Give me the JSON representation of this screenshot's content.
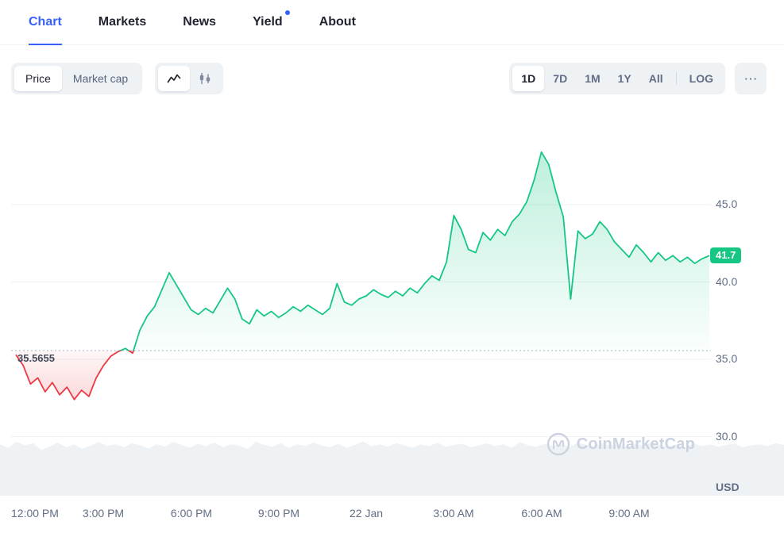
{
  "nav": {
    "tabs": [
      {
        "label": "Chart",
        "active": true,
        "dot": false
      },
      {
        "label": "Markets",
        "active": false,
        "dot": false
      },
      {
        "label": "News",
        "active": false,
        "dot": false
      },
      {
        "label": "Yield",
        "active": false,
        "dot": true
      },
      {
        "label": "About",
        "active": false,
        "dot": false
      }
    ]
  },
  "toolbar": {
    "metric_toggle": {
      "options": [
        "Price",
        "Market cap"
      ],
      "selected": "Price"
    },
    "chart_type_toggle": {
      "options": [
        "line",
        "candlestick"
      ],
      "selected": "line"
    },
    "ranges": {
      "options": [
        "1D",
        "7D",
        "1M",
        "1Y",
        "All",
        "LOG"
      ],
      "selected": "1D"
    }
  },
  "icons": {
    "more": "⋯"
  },
  "chart": {
    "current_price_label": "41.7",
    "baseline_label": "35.5655",
    "unit": "USD",
    "watermark": "CoinMarketCap"
  },
  "chart_data": {
    "type": "area",
    "title": "",
    "x_start_label": "12:00 PM",
    "interval_minutes": 15,
    "x_tick_labels": [
      "12:00 PM",
      "3:00 PM",
      "6:00 PM",
      "9:00 PM",
      "22 Jan",
      "3:00 AM",
      "6:00 AM",
      "9:00 AM"
    ],
    "x_tick_hours": [
      0,
      3,
      6,
      9,
      12,
      15,
      18,
      21
    ],
    "y_gridlines": [
      45,
      40,
      35,
      30
    ],
    "y_tick_labels": [
      "45.0",
      "40.0",
      "35.0",
      "30.0"
    ],
    "ylim": [
      28.8,
      50.2
    ],
    "baseline": 35.5655,
    "last_price": 41.7,
    "unit": "USD",
    "up_color": "#16c784",
    "down_color": "#ea3943",
    "values": [
      35.3,
      34.6,
      33.4,
      33.8,
      32.9,
      33.5,
      32.7,
      33.2,
      32.4,
      33.0,
      32.6,
      33.8,
      34.6,
      35.2,
      35.5,
      35.7,
      35.4,
      36.9,
      37.8,
      38.4,
      39.5,
      40.6,
      39.8,
      39.0,
      38.2,
      37.9,
      38.3,
      38.0,
      38.8,
      39.6,
      38.9,
      37.6,
      37.3,
      38.2,
      37.8,
      38.1,
      37.7,
      38.0,
      38.4,
      38.1,
      38.5,
      38.2,
      37.9,
      38.3,
      39.9,
      38.7,
      38.5,
      38.9,
      39.1,
      39.5,
      39.2,
      39.0,
      39.4,
      39.1,
      39.6,
      39.3,
      39.9,
      40.4,
      40.1,
      41.3,
      44.3,
      43.4,
      42.1,
      41.9,
      43.2,
      42.7,
      43.4,
      43.0,
      43.9,
      44.4,
      45.2,
      46.6,
      48.4,
      47.6,
      45.8,
      44.2,
      38.9,
      43.3,
      42.8,
      43.1,
      43.9,
      43.4,
      42.6,
      42.1,
      41.6,
      42.4,
      41.9,
      41.3,
      41.9,
      41.4,
      41.7,
      41.3,
      41.6,
      41.2,
      41.5,
      41.7
    ],
    "volume_norm": [
      0.9,
      0.84,
      0.95,
      0.88,
      0.92,
      0.8,
      0.86,
      0.93,
      0.85,
      0.9,
      0.82,
      0.88,
      0.94,
      0.87,
      0.9,
      0.85,
      0.92,
      0.88,
      0.83,
      0.9,
      0.86,
      0.94,
      0.89,
      0.84,
      0.91,
      0.87,
      0.93,
      0.85,
      0.9,
      0.88,
      0.82,
      0.95,
      0.89,
      0.86,
      0.92,
      0.84,
      0.9,
      0.87,
      0.93,
      0.88,
      0.85,
      0.91,
      0.84,
      0.89,
      0.95,
      0.87,
      0.9,
      0.86,
      0.92,
      0.88,
      0.84,
      0.9,
      0.87,
      0.93,
      0.86,
      0.89,
      0.91,
      0.85,
      0.88,
      0.92,
      0.87,
      0.9,
      0.84,
      0.94,
      0.88,
      0.86,
      0.91,
      0.87,
      0.9,
      0.85,
      0.93,
      0.89,
      0.86,
      0.92,
      0.88,
      0.9,
      0.85,
      0.91,
      0.87,
      0.94,
      0.88,
      0.86,
      0.9,
      0.84,
      0.92,
      0.87,
      0.9,
      0.86,
      0.89,
      0.91,
      0.85,
      0.88,
      0.9,
      0.87,
      0.92,
      0.89
    ]
  }
}
